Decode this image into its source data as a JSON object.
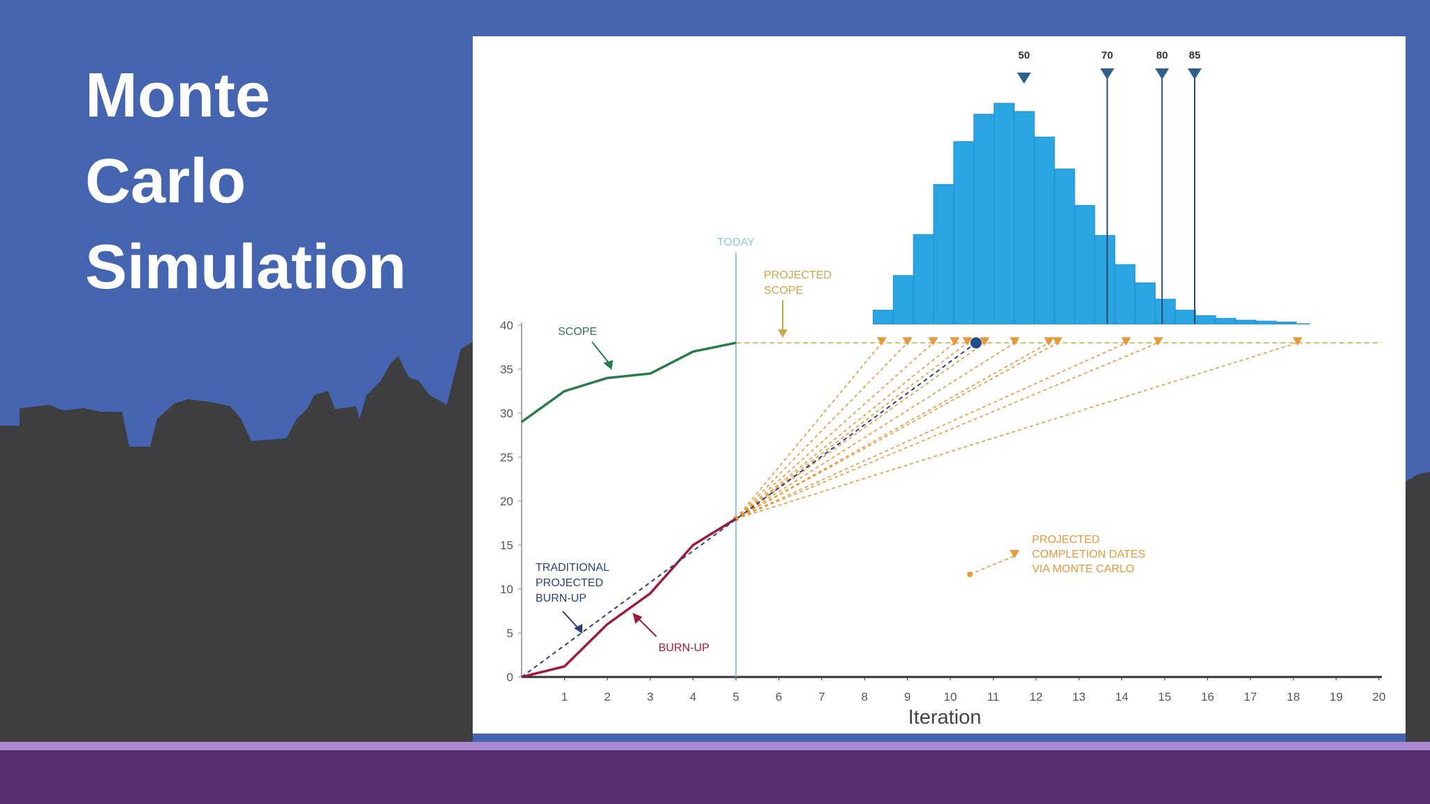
{
  "slide": {
    "title": [
      "Monte",
      "Carlo",
      "Simulation"
    ]
  },
  "chart_data": {
    "type": "line",
    "x_label": "Iteration",
    "xlim": [
      0,
      20
    ],
    "xticks": [
      1,
      2,
      3,
      4,
      5,
      6,
      7,
      8,
      9,
      10,
      11,
      12,
      13,
      14,
      15,
      16,
      17,
      18,
      19,
      20
    ],
    "ylim": [
      0,
      40
    ],
    "yticks": [
      0,
      5,
      10,
      15,
      20,
      25,
      30,
      35,
      40
    ],
    "series": [
      {
        "name": "SCOPE",
        "color": "#2b7a4b",
        "x": [
          0,
          1,
          2,
          3,
          4,
          5
        ],
        "values": [
          29,
          32.5,
          34,
          34.5,
          37,
          38
        ]
      },
      {
        "name": "BURN-UP",
        "color": "#9c1c3c",
        "x": [
          0,
          1,
          2,
          3,
          4,
          5
        ],
        "values": [
          0,
          1.2,
          6,
          9.5,
          15,
          18
        ]
      },
      {
        "color": "#2b3f7a",
        "x": [
          0,
          10.6
        ],
        "values": [
          0,
          38
        ]
      }
    ],
    "traditional_label": [
      "TRADITIONAL",
      "PROJECTED",
      "BURN-UP"
    ],
    "today": {
      "label": "TODAY",
      "x": 5,
      "color": "#8cc8e0"
    },
    "projected_scope": {
      "label": [
        "PROJECTED",
        "SCOPE"
      ],
      "value": 38,
      "color": "#c9a84a"
    },
    "projections": {
      "label": [
        "PROJECTED",
        "COMPLETION DATES",
        "VIA MONTE CARLO"
      ],
      "color": "#e8973a",
      "start_x": 5,
      "start_value": 18,
      "ends": [
        8.4,
        9.0,
        9.6,
        10.1,
        10.4,
        10.8,
        11.5,
        12.3,
        12.5,
        14.1,
        14.85,
        18.1
      ]
    },
    "histogram": {
      "color": "#2aa5e2",
      "bins": [
        8.2,
        8.67,
        9.14,
        9.61,
        10.08,
        10.55,
        11.02,
        11.49,
        11.96,
        12.43,
        12.9,
        13.37,
        13.84,
        14.31,
        14.78,
        15.25,
        15.72,
        16.19,
        16.66,
        17.13,
        17.6,
        18.07
      ],
      "counts": [
        15,
        53,
        98,
        153,
        200,
        230,
        242,
        233,
        205,
        170,
        130,
        97,
        65,
        45,
        27,
        15,
        9,
        6,
        4,
        3,
        2
      ]
    },
    "percentiles": [
      {
        "percent": 50,
        "x": 11.72
      },
      {
        "percent": 70,
        "x": 13.66
      },
      {
        "percent": 80,
        "x": 14.94
      },
      {
        "percent": 85,
        "x": 15.7
      }
    ]
  }
}
